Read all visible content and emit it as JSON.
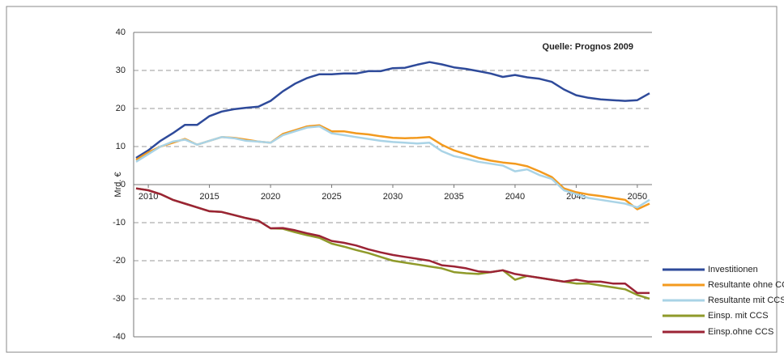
{
  "chart_data": {
    "type": "line",
    "annotation": "Quelle: Prognos 2009",
    "y_label": "Mrd. €",
    "x": [
      2009,
      2010,
      2011,
      2012,
      2013,
      2014,
      2015,
      2016,
      2017,
      2018,
      2019,
      2020,
      2021,
      2022,
      2023,
      2024,
      2025,
      2026,
      2027,
      2028,
      2029,
      2030,
      2031,
      2032,
      2033,
      2034,
      2035,
      2036,
      2037,
      2038,
      2039,
      2040,
      2041,
      2042,
      2043,
      2044,
      2045,
      2046,
      2047,
      2048,
      2049,
      2050,
      2051
    ],
    "xlim": [
      2008.8,
      2051.2
    ],
    "xticks": [
      2010,
      2015,
      2020,
      2025,
      2030,
      2035,
      2040,
      2045,
      2050
    ],
    "ylim": [
      -40,
      40
    ],
    "yticks": [
      -40,
      -30,
      -20,
      -10,
      0,
      10,
      20,
      30,
      40
    ],
    "grid": true,
    "legend": "lower right",
    "series": [
      {
        "name": "Investitionen",
        "color": "#2e4a9a",
        "values": [
          7,
          9,
          11.5,
          13.5,
          15.7,
          15.7,
          18,
          19.2,
          19.8,
          20.2,
          20.5,
          22,
          24.5,
          26.5,
          28,
          29,
          29,
          29.2,
          29.2,
          29.8,
          29.8,
          30.6,
          30.7,
          31.5,
          32.2,
          31.6,
          30.8,
          30.4,
          29.8,
          29.2,
          28.3,
          28.8,
          28.2,
          27.8,
          27,
          25,
          23.5,
          22.8,
          22.4,
          22.2,
          22,
          22.2,
          24
        ]
      },
      {
        "name": "Resultante ohne CCS",
        "color": "#f39a1e",
        "values": [
          6.5,
          8.5,
          10,
          11,
          12,
          10.5,
          11.5,
          12.5,
          12.3,
          11.8,
          11.3,
          11,
          13.3,
          14.3,
          15.3,
          15.6,
          14,
          14,
          13.5,
          13.2,
          12.7,
          12.3,
          12.2,
          12.3,
          12.5,
          10.5,
          9,
          8,
          7,
          6.3,
          5.8,
          5.5,
          4.8,
          3.5,
          2,
          -1,
          -2,
          -2.6,
          -3,
          -3.5,
          -4,
          -6.5,
          -5
        ]
      },
      {
        "name": "Resultante mit CCS",
        "color": "#a9d3e6",
        "values": [
          6,
          8,
          10,
          11.3,
          11.8,
          10.5,
          11.5,
          12.5,
          12.2,
          11.5,
          11.3,
          11,
          13,
          14,
          15,
          15.3,
          13.5,
          13,
          12.5,
          12,
          11.5,
          11.2,
          11,
          10.8,
          11,
          8.8,
          7.5,
          6.8,
          6,
          5.5,
          5,
          3.5,
          4,
          2.5,
          1.5,
          -1.5,
          -2.5,
          -3.5,
          -4,
          -4.5,
          -5,
          -6,
          -4
        ]
      },
      {
        "name": "Einsp. mit CCS",
        "color": "#8f9a2a",
        "values": [
          -1,
          -1.5,
          -2.5,
          -4,
          -5,
          -6,
          -7,
          -7.2,
          -8,
          -8.8,
          -9.5,
          -11.5,
          -11.6,
          -12.5,
          -13.3,
          -14,
          -15.5,
          -16.3,
          -17.2,
          -18,
          -19,
          -20,
          -20.5,
          -21,
          -21.5,
          -22,
          -23,
          -23.3,
          -23.5,
          -23,
          -22.5,
          -25,
          -24,
          -24.5,
          -25,
          -25.5,
          -26,
          -26,
          -26.5,
          -27,
          -27.5,
          -29,
          -30
        ]
      },
      {
        "name": "Einsp.ohne CCS",
        "color": "#9b2335",
        "values": [
          -1,
          -1.5,
          -2.5,
          -4,
          -5,
          -6,
          -7,
          -7.2,
          -8,
          -8.8,
          -9.5,
          -11.5,
          -11.4,
          -12,
          -12.8,
          -13.5,
          -14.8,
          -15.3,
          -16,
          -17,
          -17.8,
          -18.5,
          -19,
          -19.5,
          -20,
          -21.2,
          -21.5,
          -22,
          -22.8,
          -23,
          -22.5,
          -23.5,
          -24,
          -24.5,
          -25,
          -25.5,
          -25,
          -25.5,
          -25.5,
          -26,
          -26,
          -28.5,
          -28.5
        ]
      }
    ]
  }
}
